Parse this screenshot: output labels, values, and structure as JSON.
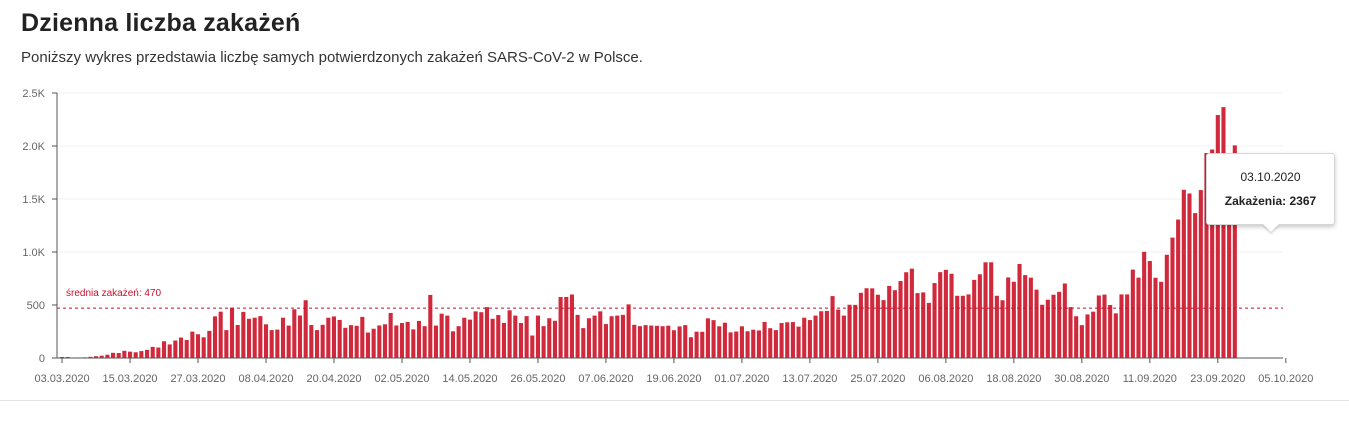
{
  "header": {
    "title": "Dzienna liczba zakażeń",
    "subtitle": "Poniższy wykres przedstawia liczbę samych potwierdzonych zakażeń SARS-CoV-2 w Polsce."
  },
  "tooltip": {
    "date": "03.10.2020",
    "label": "Zakażenia",
    "value": 2367
  },
  "colors": {
    "bar": "#d0293b",
    "bar_highlight": "#e06070",
    "average_line": "#c8102e",
    "axis": "#555555",
    "grid": "#f0f0f0"
  },
  "chart_data": {
    "type": "bar",
    "title": "Dzienna liczba zakażeń",
    "start_date": "03.03.2020",
    "x_tick_labels": [
      "03.03.2020",
      "15.03.2020",
      "27.03.2020",
      "08.04.2020",
      "20.04.2020",
      "02.05.2020",
      "14.05.2020",
      "26.05.2020",
      "07.06.2020",
      "19.06.2020",
      "01.07.2020",
      "13.07.2020",
      "25.07.2020",
      "06.08.2020",
      "18.08.2020",
      "30.08.2020",
      "11.09.2020",
      "23.09.2020",
      "05.10.2020"
    ],
    "y_ticks": [
      0,
      500,
      1000,
      1500,
      2000,
      2500
    ],
    "y_tick_labels": [
      "0",
      "500",
      "1.0K",
      "1.5K",
      "2.0K",
      "2.5K"
    ],
    "ylim": [
      0,
      2500
    ],
    "grid": true,
    "average": {
      "label": "średnia zakażeń: 470",
      "value": 470
    },
    "highlight_date": "03.10.2020",
    "values": [
      0,
      0,
      1,
      5,
      6,
      11,
      17,
      22,
      31,
      49,
      47,
      68,
      60,
      54,
      65,
      77,
      105,
      99,
      158,
      128,
      165,
      193,
      170,
      249,
      224,
      195,
      256,
      393,
      437,
      263,
      475,
      311,
      435,
      370,
      380,
      395,
      318,
      263,
      268,
      380,
      306,
      460,
      401,
      545,
      311,
      263,
      313,
      380,
      392,
      359,
      285,
      310,
      304,
      388,
      240,
      276,
      307,
      318,
      425,
      307,
      330,
      340,
      270,
      350,
      300,
      595,
      306,
      418,
      400,
      252,
      300,
      380,
      362,
      440,
      432,
      480,
      370,
      405,
      331,
      450,
      400,
      330,
      395,
      212,
      400,
      300,
      375,
      351,
      575,
      576,
      599,
      407,
      282,
      375,
      400,
      440,
      320,
      394,
      400,
      407,
      506,
      313,
      300,
      310,
      306,
      304,
      300,
      305,
      262,
      298,
      310,
      196,
      248,
      247,
      374,
      357,
      299,
      333,
      242,
      250,
      299,
      252,
      267,
      260,
      340,
      281,
      263,
      330,
      337,
      339,
      296,
      380,
      358,
      400,
      441,
      444,
      584,
      457,
      400,
      502,
      501,
      615,
      658,
      657,
      597,
      546,
      680,
      640,
      726,
      809,
      843,
      612,
      619,
      520,
      707,
      810,
      832,
      795,
      587,
      587,
      600,
      737,
      790,
      903,
      903,
      587,
      545,
      760,
      719,
      887,
      782,
      758,
      645,
      502,
      550,
      597,
      624,
      703,
      480,
      394,
      310,
      411,
      437,
      590,
      598,
      500,
      421,
      600,
      600,
      834,
      758,
      1002,
      915,
      757,
      719,
      974,
      1136,
      1306,
      1587,
      1552,
      1367,
      1584,
      1934,
      1967,
      2292,
      2367,
      1552,
      2006
    ]
  }
}
